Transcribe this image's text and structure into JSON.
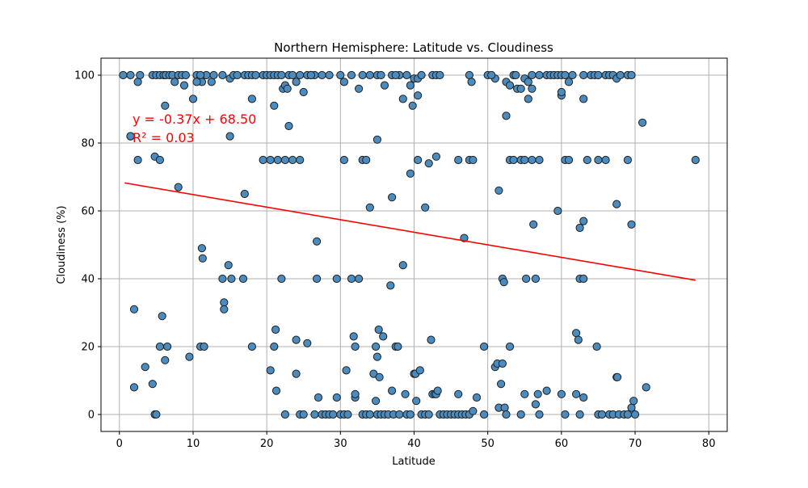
{
  "chart_data": {
    "type": "scatter",
    "title": "Northern Hemisphere: Latitude vs. Cloudiness",
    "xlabel": "Latitude",
    "ylabel": "Cloudiness (%)",
    "xlim": [
      -2.5,
      82.5
    ],
    "ylim": [
      -5,
      105
    ],
    "xticks": [
      0,
      10,
      20,
      30,
      40,
      50,
      60,
      70,
      80
    ],
    "yticks": [
      0,
      20,
      40,
      60,
      80,
      100
    ],
    "grid": true,
    "colors": {
      "point_fill": "#4a8cbf",
      "point_edge": "#1f1f1f",
      "regression_line": "#ff0000",
      "grid": "#b0b0b0"
    },
    "annotation": {
      "equation": "y = -0.37x + 68.50",
      "r_squared": "R² = 0.03",
      "color": "#ff0000"
    },
    "regression": {
      "slope": -0.37,
      "intercept": 68.5,
      "x_range": [
        0.7,
        78.2
      ]
    },
    "points": [
      [
        0.5,
        100
      ],
      [
        1.5,
        100
      ],
      [
        2.5,
        98
      ],
      [
        2.8,
        100
      ],
      [
        4.5,
        100
      ],
      [
        5.0,
        100
      ],
      [
        5.5,
        100
      ],
      [
        6.0,
        100
      ],
      [
        6.3,
        100
      ],
      [
        6.8,
        100
      ],
      [
        7.2,
        100
      ],
      [
        7.5,
        98
      ],
      [
        8.0,
        100
      ],
      [
        8.5,
        100
      ],
      [
        8.8,
        97
      ],
      [
        9.0,
        100
      ],
      [
        10.5,
        100
      ],
      [
        11.0,
        99
      ],
      [
        11.2,
        98
      ],
      [
        11.8,
        100
      ],
      [
        12.5,
        98
      ],
      [
        12.8,
        100
      ],
      [
        14.0,
        100
      ],
      [
        15.0,
        99
      ],
      [
        15.5,
        100
      ],
      [
        16.0,
        100
      ],
      [
        17.0,
        100
      ],
      [
        17.5,
        100
      ],
      [
        18.0,
        100
      ],
      [
        18.5,
        100
      ],
      [
        19.5,
        100
      ],
      [
        20.0,
        100
      ],
      [
        20.5,
        100
      ],
      [
        21.0,
        100
      ],
      [
        21.5,
        100
      ],
      [
        22.0,
        100
      ],
      [
        22.2,
        96
      ],
      [
        22.5,
        97
      ],
      [
        22.8,
        96
      ],
      [
        23.0,
        100
      ],
      [
        23.5,
        100
      ],
      [
        24.0,
        98
      ],
      [
        24.5,
        100
      ],
      [
        25.5,
        100
      ],
      [
        26.0,
        100
      ],
      [
        26.5,
        100
      ],
      [
        27.5,
        100
      ],
      [
        28.5,
        100
      ],
      [
        30.0,
        100
      ],
      [
        30.5,
        98
      ],
      [
        31.5,
        100
      ],
      [
        33.0,
        100
      ],
      [
        34.0,
        100
      ],
      [
        35.0,
        100
      ],
      [
        35.5,
        100
      ],
      [
        36.0,
        97
      ],
      [
        37.0,
        100
      ],
      [
        38.5,
        93
      ],
      [
        38.0,
        100
      ],
      [
        39.0,
        100
      ],
      [
        39.5,
        97
      ],
      [
        40.0,
        99
      ],
      [
        40.5,
        99
      ],
      [
        41.0,
        100
      ],
      [
        42.5,
        100
      ],
      [
        43.0,
        100
      ],
      [
        43.5,
        100
      ],
      [
        47.5,
        100
      ],
      [
        47.8,
        98
      ],
      [
        50.0,
        100
      ],
      [
        51.0,
        99
      ],
      [
        52.5,
        98
      ],
      [
        53.0,
        97
      ],
      [
        53.5,
        100
      ],
      [
        53.8,
        100
      ],
      [
        54.0,
        96
      ],
      [
        54.5,
        96
      ],
      [
        55.0,
        99
      ],
      [
        55.5,
        98
      ],
      [
        56.0,
        100
      ],
      [
        57.0,
        100
      ],
      [
        58.0,
        100
      ],
      [
        58.5,
        100
      ],
      [
        59.0,
        100
      ],
      [
        59.5,
        100
      ],
      [
        60.0,
        100
      ],
      [
        60.5,
        100
      ],
      [
        61.0,
        98
      ],
      [
        61.5,
        100
      ],
      [
        63.0,
        100
      ],
      [
        64.0,
        100
      ],
      [
        64.5,
        100
      ],
      [
        65.0,
        100
      ],
      [
        66.0,
        100
      ],
      [
        66.5,
        100
      ],
      [
        67.0,
        100
      ],
      [
        67.5,
        99
      ],
      [
        68.0,
        100
      ],
      [
        69.0,
        100
      ],
      [
        69.5,
        100
      ],
      [
        6.2,
        91
      ],
      [
        8.0,
        67
      ],
      [
        10.0,
        93
      ],
      [
        10.5,
        98
      ],
      [
        11.0,
        100
      ],
      [
        15.0,
        82
      ],
      [
        18.0,
        93
      ],
      [
        19.5,
        75
      ],
      [
        21.0,
        91
      ],
      [
        21.5,
        75
      ],
      [
        23.0,
        85
      ],
      [
        23.5,
        75
      ],
      [
        24.5,
        75
      ],
      [
        25.0,
        95
      ],
      [
        20.5,
        75
      ],
      [
        22.5,
        75
      ],
      [
        26.0,
        100
      ],
      [
        30.5,
        75
      ],
      [
        32.5,
        96
      ],
      [
        33.0,
        75
      ],
      [
        33.5,
        75
      ],
      [
        35.0,
        81
      ],
      [
        37.0,
        64
      ],
      [
        37.5,
        100
      ],
      [
        39.5,
        71
      ],
      [
        39.8,
        91
      ],
      [
        40.5,
        94
      ],
      [
        40.5,
        75
      ],
      [
        41.5,
        61
      ],
      [
        42.0,
        74
      ],
      [
        43.0,
        76
      ],
      [
        46.0,
        75
      ],
      [
        47.5,
        75
      ],
      [
        48.0,
        75
      ],
      [
        50.5,
        100
      ],
      [
        51.5,
        66
      ],
      [
        52.5,
        88
      ],
      [
        53.0,
        75
      ],
      [
        53.5,
        75
      ],
      [
        54.5,
        75
      ],
      [
        55.0,
        75
      ],
      [
        55.5,
        93
      ],
      [
        56.0,
        96
      ],
      [
        56.0,
        75
      ],
      [
        56.2,
        56
      ],
      [
        57.0,
        75
      ],
      [
        59.5,
        60
      ],
      [
        60.0,
        94
      ],
      [
        60.0,
        95
      ],
      [
        60.5,
        75
      ],
      [
        61.0,
        75
      ],
      [
        62.5,
        55
      ],
      [
        63.0,
        57
      ],
      [
        63.0,
        93
      ],
      [
        63.5,
        75
      ],
      [
        65.0,
        75
      ],
      [
        66.0,
        75
      ],
      [
        67.5,
        62
      ],
      [
        69.0,
        75
      ],
      [
        69.5,
        56
      ],
      [
        71.0,
        86
      ],
      [
        78.2,
        75
      ],
      [
        1.5,
        82
      ],
      [
        2.5,
        75
      ],
      [
        4.8,
        76
      ],
      [
        5.5,
        75
      ],
      [
        2.0,
        31
      ],
      [
        2.0,
        8
      ],
      [
        3.5,
        14
      ],
      [
        4.5,
        9
      ],
      [
        4.8,
        0
      ],
      [
        5.0,
        0
      ],
      [
        5.5,
        20
      ],
      [
        5.8,
        29
      ],
      [
        6.2,
        16
      ],
      [
        6.5,
        20
      ],
      [
        9.5,
        17
      ],
      [
        11.0,
        20
      ],
      [
        11.2,
        49
      ],
      [
        11.3,
        46
      ],
      [
        11.5,
        20
      ],
      [
        14.0,
        40
      ],
      [
        14.2,
        33
      ],
      [
        14.2,
        31
      ],
      [
        14.8,
        44
      ],
      [
        15.2,
        40
      ],
      [
        16.8,
        40
      ],
      [
        17.0,
        65
      ],
      [
        18.0,
        20
      ],
      [
        20.5,
        13
      ],
      [
        21.0,
        20
      ],
      [
        21.2,
        25
      ],
      [
        21.3,
        7
      ],
      [
        22.0,
        40
      ],
      [
        22.5,
        0
      ],
      [
        24.0,
        22
      ],
      [
        24.0,
        12
      ],
      [
        24.5,
        0
      ],
      [
        25.0,
        0
      ],
      [
        25.5,
        21
      ],
      [
        26.5,
        0
      ],
      [
        26.8,
        40
      ],
      [
        26.8,
        51
      ],
      [
        27.0,
        5
      ],
      [
        27.5,
        0
      ],
      [
        28.0,
        0
      ],
      [
        28.5,
        0
      ],
      [
        29.0,
        0
      ],
      [
        29.5,
        40
      ],
      [
        29.5,
        5
      ],
      [
        30.0,
        0
      ],
      [
        30.5,
        0
      ],
      [
        30.8,
        13
      ],
      [
        31.0,
        0
      ],
      [
        31.5,
        40
      ],
      [
        31.8,
        23
      ],
      [
        32.0,
        20
      ],
      [
        32.0,
        5
      ],
      [
        32.0,
        6
      ],
      [
        32.5,
        40
      ],
      [
        33.0,
        0
      ],
      [
        33.5,
        0
      ],
      [
        34.0,
        61
      ],
      [
        34.0,
        0
      ],
      [
        34.5,
        12
      ],
      [
        34.8,
        4
      ],
      [
        34.8,
        20
      ],
      [
        35.0,
        17
      ],
      [
        35.0,
        0
      ],
      [
        35.2,
        25
      ],
      [
        35.3,
        11
      ],
      [
        35.5,
        0
      ],
      [
        35.8,
        23
      ],
      [
        36.0,
        0
      ],
      [
        36.5,
        0
      ],
      [
        36.8,
        38
      ],
      [
        37.0,
        7
      ],
      [
        37.2,
        0
      ],
      [
        37.5,
        20
      ],
      [
        37.8,
        20
      ],
      [
        38.0,
        0
      ],
      [
        38.5,
        44
      ],
      [
        38.8,
        6
      ],
      [
        39.0,
        0
      ],
      [
        39.5,
        0
      ],
      [
        40.0,
        12
      ],
      [
        40.2,
        12
      ],
      [
        40.3,
        4
      ],
      [
        40.8,
        13
      ],
      [
        41.0,
        0
      ],
      [
        41.5,
        0
      ],
      [
        42.0,
        0
      ],
      [
        42.3,
        22
      ],
      [
        42.5,
        6
      ],
      [
        42.8,
        6
      ],
      [
        43.0,
        6
      ],
      [
        43.2,
        7
      ],
      [
        43.5,
        0
      ],
      [
        44.0,
        0
      ],
      [
        44.5,
        0
      ],
      [
        45.0,
        0
      ],
      [
        45.5,
        0
      ],
      [
        46.0,
        6
      ],
      [
        46.0,
        0
      ],
      [
        46.5,
        0
      ],
      [
        46.8,
        52
      ],
      [
        47.0,
        0
      ],
      [
        47.5,
        0
      ],
      [
        48.0,
        1
      ],
      [
        48.5,
        5
      ],
      [
        49.5,
        20
      ],
      [
        49.5,
        0
      ],
      [
        51.0,
        14
      ],
      [
        51.3,
        15
      ],
      [
        51.5,
        2
      ],
      [
        51.8,
        9
      ],
      [
        52.0,
        40
      ],
      [
        52.0,
        15
      ],
      [
        52.2,
        39
      ],
      [
        52.3,
        2
      ],
      [
        52.5,
        0
      ],
      [
        53.0,
        20
      ],
      [
        54.5,
        0
      ],
      [
        55.0,
        6
      ],
      [
        55.2,
        40
      ],
      [
        56.5,
        40
      ],
      [
        56.8,
        6
      ],
      [
        57.0,
        0
      ],
      [
        58.0,
        7
      ],
      [
        60.0,
        6
      ],
      [
        60.5,
        0
      ],
      [
        62.0,
        24
      ],
      [
        62.0,
        6
      ],
      [
        62.3,
        22
      ],
      [
        62.5,
        40
      ],
      [
        63.0,
        40
      ],
      [
        63.0,
        5
      ],
      [
        62.5,
        0
      ],
      [
        64.8,
        20
      ],
      [
        65.0,
        0
      ],
      [
        65.5,
        0
      ],
      [
        66.5,
        0
      ],
      [
        67.0,
        0
      ],
      [
        67.5,
        11
      ],
      [
        67.6,
        11
      ],
      [
        67.8,
        0
      ],
      [
        68.5,
        0
      ],
      [
        69.0,
        0
      ],
      [
        69.5,
        2
      ],
      [
        69.8,
        4
      ],
      [
        70.0,
        0
      ],
      [
        71.5,
        8
      ],
      [
        1.5,
        82
      ],
      [
        56.5,
        3
      ]
    ]
  }
}
